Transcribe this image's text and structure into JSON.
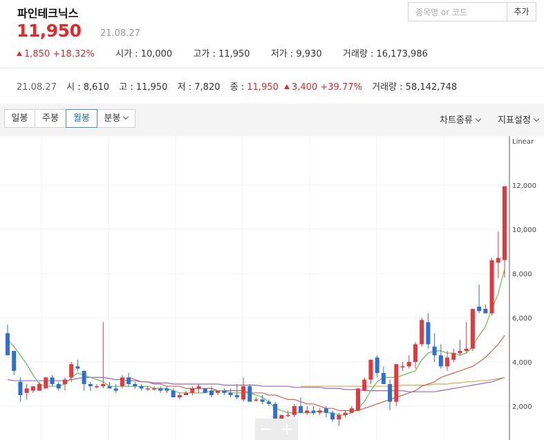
{
  "stock": {
    "name": "파인테크닉스",
    "price": "11,950",
    "date": "21.08.27",
    "change": "1,850",
    "change_pct": "+18.32%",
    "open_label": "시가 : ",
    "open": "10,000",
    "high_label": "고가 : ",
    "high": "11,950",
    "low_label": "저가 : ",
    "low": "9,930",
    "volume_label": "거래량 : ",
    "volume": "16,173,986"
  },
  "search": {
    "placeholder": "종목명 or 코드",
    "value": "",
    "add_label": "추가"
  },
  "summary": {
    "date": "21.08.27",
    "open_label": "시 : ",
    "open": "8,610",
    "high_label": "고 : ",
    "high": "11,950",
    "low_label": "저 : ",
    "low": "7,820",
    "close_label": "종 : ",
    "close": "11,950",
    "change": "3,400",
    "change_pct": "+39.77%",
    "volume_label": "거래량 : ",
    "volume": "58,142,748"
  },
  "toolbar": {
    "tabs": [
      "일봉",
      "주봉",
      "월봉",
      "분봉"
    ],
    "active_tab": 2,
    "chart_type_label": "차트종류",
    "indicator_label": "지표설정"
  },
  "zoom": {
    "minus": "−",
    "plus": "+"
  },
  "colors": {
    "up": "#e5373e",
    "down": "#2f6fd2",
    "ma5": "#5fc24f",
    "ma20": "#d8604f",
    "ma60": "#9966cc",
    "ma120": "#e0a64a"
  },
  "chart_data": {
    "type": "candlestick",
    "scale": "Linear",
    "ylim": [
      1100,
      13000
    ],
    "ticks": [
      2000,
      4000,
      6000,
      8000,
      10000,
      12000
    ],
    "tick_labels": [
      "2,000",
      "4,000",
      "6,000",
      "8,000",
      "10,000",
      "12,000"
    ],
    "grid": true,
    "candles": [
      [
        5300,
        5700,
        4300,
        4300
      ],
      [
        4500,
        4500,
        3400,
        3600
      ],
      [
        3100,
        3300,
        2200,
        2500
      ],
      [
        2600,
        3000,
        2300,
        2800
      ],
      [
        2700,
        2800,
        2600,
        2900
      ],
      [
        2700,
        3100,
        2700,
        3000
      ],
      [
        2800,
        3300,
        2800,
        3300
      ],
      [
        3300,
        3400,
        2900,
        3000
      ],
      [
        3000,
        3100,
        2700,
        2800
      ],
      [
        3000,
        3300,
        2700,
        3200
      ],
      [
        3300,
        4000,
        3100,
        3900
      ],
      [
        3800,
        4100,
        3600,
        3700
      ],
      [
        3600,
        3600,
        2700,
        3000
      ],
      [
        3000,
        3100,
        2700,
        2900
      ],
      [
        2900,
        3000,
        2800,
        2900
      ],
      [
        2900,
        5800,
        2800,
        3000
      ],
      [
        2900,
        3100,
        2800,
        2800
      ],
      [
        2800,
        3000,
        2600,
        2700
      ],
      [
        2900,
        3400,
        2800,
        3300
      ],
      [
        3300,
        3500,
        2900,
        3000
      ],
      [
        3000,
        3100,
        2800,
        2900
      ],
      [
        2900,
        3000,
        2700,
        2800
      ],
      [
        2800,
        2900,
        2700,
        2800
      ],
      [
        2800,
        2900,
        2700,
        2800
      ],
      [
        2800,
        2900,
        2600,
        2700
      ],
      [
        2800,
        2900,
        2600,
        2700
      ],
      [
        2700,
        2800,
        2400,
        2400
      ],
      [
        2400,
        2600,
        2300,
        2500
      ],
      [
        2500,
        2700,
        2500,
        2600
      ],
      [
        2600,
        2900,
        2500,
        2800
      ],
      [
        2800,
        3000,
        2600,
        2900
      ],
      [
        2800,
        2800,
        2600,
        2600
      ],
      [
        2700,
        2900,
        2400,
        2500
      ],
      [
        2600,
        2700,
        2500,
        2700
      ],
      [
        2700,
        2800,
        2500,
        2600
      ],
      [
        2600,
        2800,
        2400,
        2500
      ],
      [
        2500,
        3000,
        2300,
        2400
      ],
      [
        2300,
        3300,
        2200,
        2900
      ],
      [
        2900,
        3000,
        2200,
        2200
      ],
      [
        2300,
        2400,
        2200,
        2300
      ],
      [
        2300,
        2500,
        2100,
        2200
      ],
      [
        2200,
        2300,
        2000,
        2100
      ],
      [
        2100,
        2200,
        1300,
        1400
      ],
      [
        1400,
        1600,
        1300,
        1600
      ],
      [
        1600,
        1800,
        1500,
        1600
      ],
      [
        1600,
        2100,
        1500,
        2000
      ],
      [
        2000,
        2400,
        1700,
        1700
      ],
      [
        1700,
        2000,
        1600,
        1800
      ],
      [
        1800,
        2000,
        1600,
        1700
      ],
      [
        1700,
        1900,
        1600,
        1800
      ],
      [
        1900,
        2000,
        1500,
        1700
      ],
      [
        1700,
        1800,
        1300,
        1400
      ],
      [
        1400,
        1700,
        1100,
        1600
      ],
      [
        1600,
        1800,
        1500,
        1700
      ],
      [
        1700,
        2000,
        1700,
        1900
      ],
      [
        1800,
        2800,
        1800,
        2800
      ],
      [
        2700,
        3300,
        2700,
        3200
      ],
      [
        3200,
        4100,
        3000,
        4100
      ],
      [
        4200,
        4300,
        3300,
        3500
      ],
      [
        3500,
        3800,
        3000,
        3000
      ],
      [
        3000,
        3200,
        1800,
        2200
      ],
      [
        2200,
        3900,
        2000,
        3900
      ],
      [
        3800,
        4000,
        3600,
        3800
      ],
      [
        3800,
        4300,
        3700,
        4000
      ],
      [
        4000,
        4900,
        3700,
        4800
      ],
      [
        4800,
        6000,
        4700,
        5900
      ],
      [
        5800,
        6200,
        4600,
        4800
      ],
      [
        4700,
        5300,
        4000,
        4300
      ],
      [
        4300,
        4800,
        3700,
        3800
      ],
      [
        3800,
        4500,
        3600,
        4200
      ],
      [
        4100,
        4600,
        4000,
        4400
      ],
      [
        4400,
        5000,
        4300,
        4500
      ],
      [
        4500,
        5800,
        4400,
        4600
      ],
      [
        4600,
        6400,
        4500,
        6400
      ],
      [
        6500,
        7500,
        6200,
        6300
      ],
      [
        6400,
        6600,
        6200,
        6200
      ],
      [
        6200,
        8700,
        6100,
        8600
      ],
      [
        8500,
        9900,
        7800,
        8700
      ],
      [
        8610,
        11950,
        7820,
        11950
      ]
    ],
    "ma5": [
      5000,
      4700,
      4300,
      3900,
      3400,
      3000,
      2900,
      2900,
      2900,
      3000,
      3300,
      3500,
      3400,
      3300,
      3200,
      3100,
      2900,
      2900,
      2900,
      2900,
      2900,
      2900,
      2900,
      2800,
      2800,
      2800,
      2700,
      2600,
      2600,
      2600,
      2600,
      2600,
      2700,
      2700,
      2700,
      2600,
      2600,
      2600,
      2600,
      2500,
      2400,
      2200,
      1900,
      1800,
      1700,
      1700,
      1700,
      1700,
      1700,
      1800,
      1700,
      1700,
      1600,
      1600,
      1700,
      1900,
      2200,
      2700,
      3100,
      3300,
      3300,
      3300,
      3400,
      3500,
      3600,
      4100,
      4400,
      4500,
      4500,
      4400,
      4400,
      4300,
      4400,
      4700,
      5200,
      5600,
      6400,
      7100,
      8200
    ],
    "ma20": [
      null,
      null,
      null,
      null,
      null,
      null,
      null,
      null,
      null,
      null,
      null,
      null,
      null,
      null,
      null,
      null,
      null,
      null,
      null,
      3300,
      3200,
      3100,
      3100,
      3000,
      3000,
      2900,
      2900,
      2900,
      2800,
      2800,
      2800,
      2800,
      2800,
      2700,
      2700,
      2700,
      2700,
      2700,
      2600,
      2600,
      2600,
      2500,
      2500,
      2400,
      2300,
      2300,
      2200,
      2100,
      2100,
      2000,
      1900,
      1900,
      1800,
      1800,
      1800,
      1800,
      1900,
      2000,
      2100,
      2200,
      2300,
      2400,
      2500,
      2600,
      2700,
      2900,
      3000,
      3100,
      3300,
      3400,
      3500,
      3600,
      3700,
      3800,
      4000,
      4200,
      4500,
      4800,
      5200
    ],
    "ma60": [
      3200,
      3150,
      3150,
      3150,
      3150,
      3150,
      3150,
      3150,
      3150,
      3150,
      3200,
      3250,
      3300,
      3300,
      3300,
      3300,
      3250,
      3200,
      3200,
      3150,
      3150,
      3100,
      3100,
      3050,
      3050,
      3050,
      3000,
      3000,
      3000,
      3000,
      3000,
      3000,
      3000,
      3000,
      2950,
      2950,
      2950,
      2950,
      2950,
      2950,
      2900,
      2900,
      2900,
      2900,
      2900,
      2850,
      2850,
      2850,
      2850,
      2850,
      2800,
      2800,
      2800,
      2750,
      2750,
      2750,
      2700,
      2700,
      2700,
      2700,
      2700,
      2700,
      2700,
      2650,
      2650,
      2650,
      2650,
      2650,
      2700,
      2750,
      2800,
      2850,
      2900,
      2950,
      3000,
      3050,
      3100,
      3200,
      3300
    ],
    "ma120": [
      null,
      null,
      null,
      null,
      null,
      null,
      null,
      null,
      null,
      null,
      null,
      null,
      null,
      null,
      null,
      null,
      null,
      null,
      null,
      null,
      null,
      null,
      null,
      null,
      null,
      null,
      null,
      null,
      null,
      null,
      null,
      null,
      null,
      null,
      null,
      null,
      null,
      null,
      null,
      null,
      null,
      null,
      null,
      null,
      null,
      null,
      2900,
      2900,
      2900,
      2900,
      2900,
      2900,
      2900,
      2900,
      2900,
      2900,
      2900,
      2900,
      2900,
      2900,
      2900,
      2900,
      2950,
      2950,
      2950,
      2950,
      2950,
      3000,
      3000,
      3000,
      3050,
      3050,
      3100,
      3100,
      3150,
      3150,
      3200,
      3250,
      3300
    ]
  }
}
